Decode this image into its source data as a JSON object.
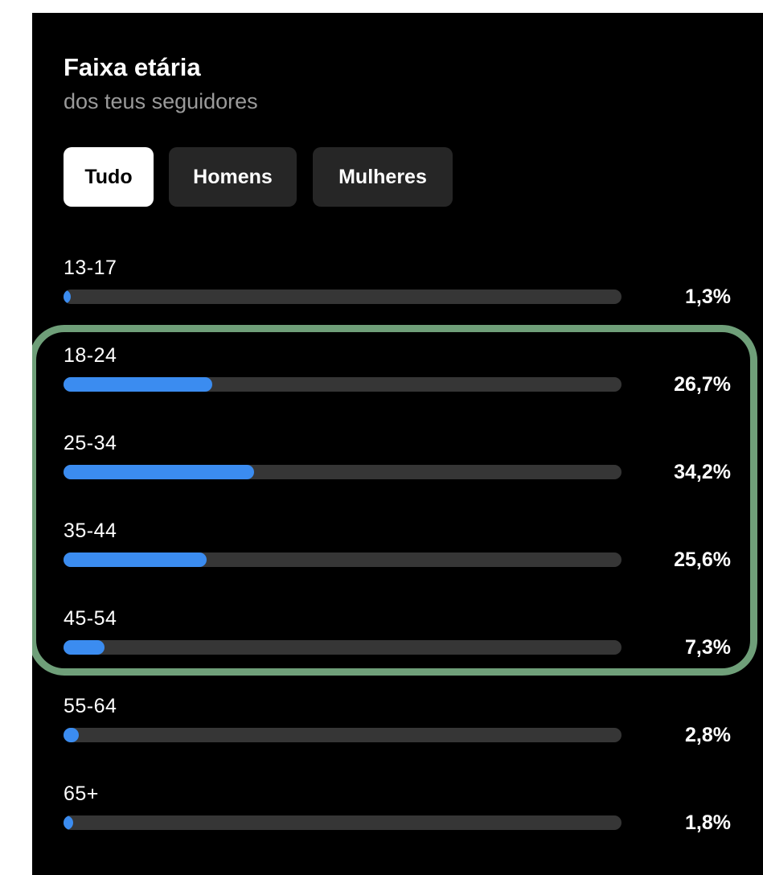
{
  "header": {
    "title": "Faixa etária",
    "subtitle": "dos teus seguidores"
  },
  "tabs": [
    {
      "label": "Tudo",
      "active": true
    },
    {
      "label": "Homens",
      "active": false
    },
    {
      "label": "Mulheres",
      "active": false
    }
  ],
  "colors": {
    "background": "#000000",
    "bar_fill": "#3b8cf0",
    "bar_track": "#363636",
    "highlight": "#6f9f79"
  },
  "chart_data": {
    "type": "bar",
    "categories": [
      "13-17",
      "18-24",
      "25-34",
      "35-44",
      "45-54",
      "55-64",
      "65+"
    ],
    "values": [
      1.3,
      26.7,
      34.2,
      25.6,
      7.3,
      2.8,
      1.8
    ],
    "value_labels": [
      "1,3%",
      "26,7%",
      "34,2%",
      "25,6%",
      "7,3%",
      "2,8%",
      "1,8%"
    ],
    "max_value": 100
  },
  "highlight": {
    "categories": [
      "18-24",
      "25-34",
      "35-44",
      "45-54"
    ]
  }
}
